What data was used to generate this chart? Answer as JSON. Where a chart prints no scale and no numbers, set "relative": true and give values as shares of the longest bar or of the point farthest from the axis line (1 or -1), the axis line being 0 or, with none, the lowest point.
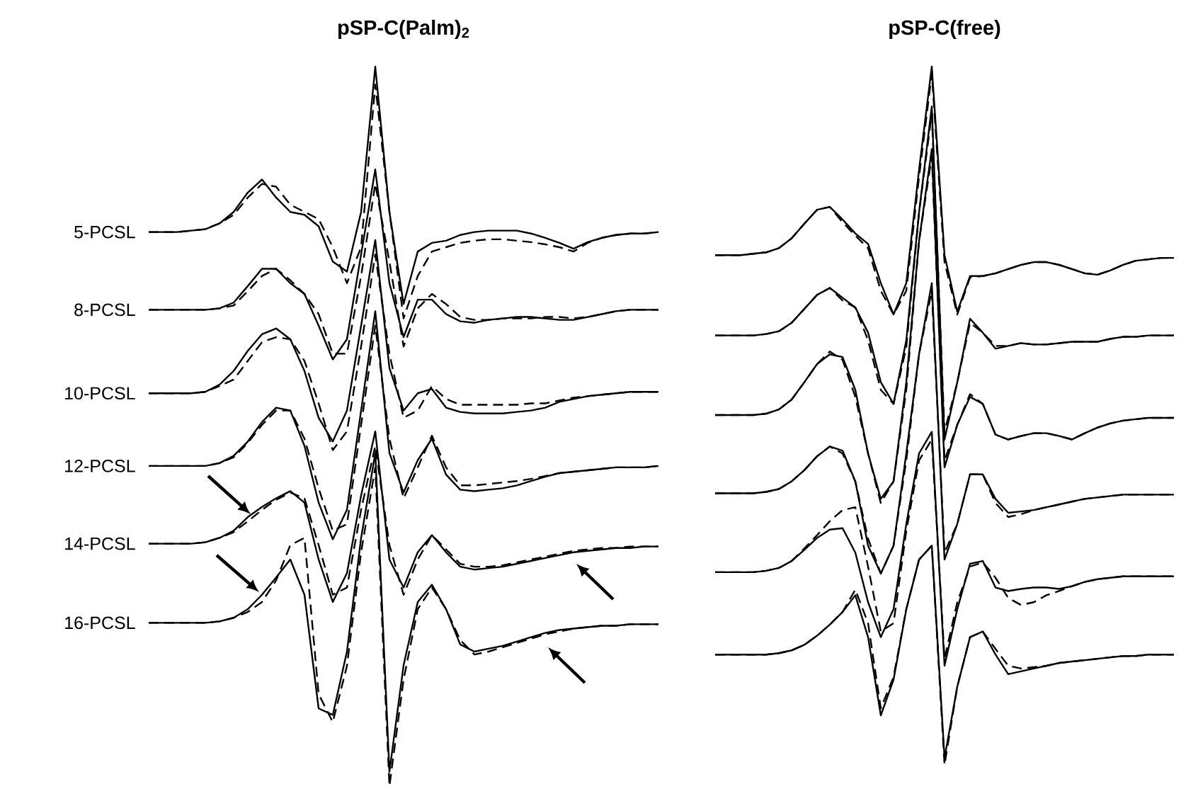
{
  "chart_data": [
    {
      "type": "line",
      "title": "pSP-C(Palm)$_{2}$",
      "relative": true,
      "categories": [
        null,
        null,
        null,
        null,
        null,
        null,
        null,
        null,
        null,
        null,
        null,
        null,
        null,
        null,
        null,
        null,
        null,
        null,
        null,
        null,
        null,
        null,
        null,
        null,
        null,
        null,
        null,
        null,
        null,
        null,
        null,
        null,
        null,
        null,
        null,
        null,
        null
      ],
      "series": [
        {
          "name": "5-PCSL",
          "color": "#000000",
          "line_style": "solid",
          "values": [
            0.77,
            0.77,
            0.77,
            0.772,
            0.774,
            0.782,
            0.798,
            0.825,
            0.843,
            0.818,
            0.798,
            0.794,
            0.778,
            0.729,
            0.715,
            0.798,
            1,
            0.798,
            0.67,
            0.743,
            0.755,
            0.758,
            0.766,
            0.77,
            0.772,
            0.772,
            0.772,
            0.768,
            0.762,
            0.755,
            0.747,
            0.756,
            0.762,
            0.766,
            0.768,
            0.768,
            0.77
          ]
        },
        {
          "color": "#000000",
          "line_style": "dashed",
          "values": [
            0.77,
            0.77,
            0.77,
            0.772,
            0.774,
            0.782,
            0.794,
            0.818,
            0.837,
            0.833,
            0.808,
            0.798,
            0.788,
            0.749,
            0.699,
            0.749,
            0.975,
            0.798,
            0.65,
            0.709,
            0.743,
            0.749,
            0.755,
            0.758,
            0.76,
            0.76,
            0.758,
            0.756,
            0.753,
            0.749,
            0.743,
            0.755,
            0.762,
            0.766,
            0.768,
            0.768,
            0.77
          ]
        },
        {
          "name": "8-PCSL",
          "color": "#000000",
          "line_style": "solid",
          "values": [
            0.662,
            0.662,
            0.662,
            0.662,
            0.662,
            0.664,
            0.672,
            0.695,
            0.719,
            0.719,
            0.699,
            0.684,
            0.64,
            0.593,
            0.621,
            0.739,
            0.857,
            0.699,
            0.624,
            0.676,
            0.676,
            0.656,
            0.646,
            0.644,
            0.648,
            0.65,
            0.652,
            0.652,
            0.65,
            0.648,
            0.648,
            0.652,
            0.656,
            0.66,
            0.662,
            0.662,
            0.662
          ]
        },
        {
          "color": "#000000",
          "line_style": "dashed",
          "values": [
            0.662,
            0.662,
            0.662,
            0.662,
            0.662,
            0.664,
            0.668,
            0.688,
            0.709,
            0.719,
            0.703,
            0.684,
            0.656,
            0.601,
            0.601,
            0.709,
            0.837,
            0.729,
            0.611,
            0.664,
            0.684,
            0.67,
            0.652,
            0.648,
            0.648,
            0.65,
            0.65,
            0.65,
            0.652,
            0.652,
            0.65,
            0.652,
            0.656,
            0.66,
            0.662,
            0.662,
            0.662
          ]
        },
        {
          "name": "10-PCSL",
          "color": "#000000",
          "line_style": "solid",
          "values": [
            0.546,
            0.546,
            0.546,
            0.546,
            0.548,
            0.558,
            0.577,
            0.605,
            0.628,
            0.636,
            0.621,
            0.577,
            0.512,
            0.479,
            0.522,
            0.64,
            0.759,
            0.581,
            0.522,
            0.546,
            0.552,
            0.526,
            0.52,
            0.518,
            0.518,
            0.518,
            0.52,
            0.522,
            0.526,
            0.534,
            0.538,
            0.542,
            0.544,
            0.546,
            0.548,
            0.548,
            0.548
          ]
        },
        {
          "color": "#000000",
          "line_style": "dashed",
          "values": [
            0.546,
            0.546,
            0.546,
            0.546,
            0.548,
            0.556,
            0.565,
            0.591,
            0.617,
            0.624,
            0.621,
            0.591,
            0.532,
            0.467,
            0.493,
            0.611,
            0.739,
            0.601,
            0.512,
            0.522,
            0.556,
            0.538,
            0.53,
            0.53,
            0.53,
            0.53,
            0.53,
            0.532,
            0.532,
            0.536,
            0.54,
            0.542,
            0.544,
            0.546,
            0.548,
            0.548,
            0.548
          ]
        },
        {
          "name": "12-PCSL",
          "color": "#000000",
          "line_style": "solid",
          "values": [
            0.445,
            0.445,
            0.445,
            0.445,
            0.445,
            0.449,
            0.459,
            0.479,
            0.506,
            0.526,
            0.522,
            0.473,
            0.394,
            0.343,
            0.384,
            0.522,
            0.66,
            0.463,
            0.408,
            0.453,
            0.483,
            0.433,
            0.412,
            0.41,
            0.412,
            0.414,
            0.418,
            0.424,
            0.43,
            0.435,
            0.437,
            0.439,
            0.441,
            0.443,
            0.443,
            0.443,
            0.445
          ]
        },
        {
          "color": "#000000",
          "line_style": "dashed",
          "values": [
            0.445,
            0.445,
            0.445,
            0.445,
            0.445,
            0.449,
            0.457,
            0.477,
            0.502,
            0.522,
            0.522,
            0.483,
            0.414,
            0.355,
            0.364,
            0.502,
            0.64,
            0.483,
            0.4,
            0.443,
            0.487,
            0.443,
            0.418,
            0.418,
            0.42,
            0.422,
            0.424,
            0.427,
            0.431,
            0.435,
            0.437,
            0.439,
            0.441,
            0.443,
            0.443,
            0.443,
            0.445
          ]
        },
        {
          "name": "14-PCSL",
          "color": "#000000",
          "line_style": "solid",
          "values": [
            0.337,
            0.337,
            0.337,
            0.337,
            0.339,
            0.345,
            0.355,
            0.374,
            0.388,
            0.4,
            0.41,
            0.394,
            0.315,
            0.256,
            0.296,
            0.404,
            0.493,
            0.315,
            0.276,
            0.325,
            0.349,
            0.325,
            0.305,
            0.301,
            0.303,
            0.305,
            0.309,
            0.313,
            0.317,
            0.321,
            0.325,
            0.327,
            0.329,
            0.331,
            0.331,
            0.333,
            0.333
          ]
        },
        {
          "color": "#000000",
          "line_style": "dashed",
          "values": [
            0.337,
            0.337,
            0.337,
            0.337,
            0.339,
            0.345,
            0.353,
            0.368,
            0.384,
            0.398,
            0.408,
            0.4,
            0.335,
            0.266,
            0.276,
            0.384,
            0.473,
            0.335,
            0.266,
            0.315,
            0.349,
            0.329,
            0.309,
            0.305,
            0.305,
            0.307,
            0.311,
            0.315,
            0.319,
            0.323,
            0.327,
            0.329,
            0.331,
            0.331,
            0.333,
            0.333,
            0.333
          ]
        },
        {
          "name": "16-PCSL",
          "color": "#000000",
          "line_style": "solid",
          "values": [
            0.227,
            0.227,
            0.227,
            0.227,
            0.227,
            0.229,
            0.234,
            0.246,
            0.266,
            0.29,
            0.315,
            0.266,
            0.108,
            0.099,
            0.187,
            0.345,
            0.463,
            0.02,
            0.168,
            0.256,
            0.28,
            0.246,
            0.197,
            0.187,
            0.191,
            0.195,
            0.201,
            0.207,
            0.213,
            0.217,
            0.219,
            0.221,
            0.223,
            0.223,
            0.225,
            0.225,
            0.225
          ]
        },
        {
          "color": "#000000",
          "line_style": "dashed",
          "values": [
            0.227,
            0.227,
            0.227,
            0.227,
            0.227,
            0.229,
            0.234,
            0.242,
            0.256,
            0.286,
            0.335,
            0.345,
            0.128,
            0.089,
            0.167,
            0.325,
            0.443,
            0,
            0.148,
            0.246,
            0.276,
            0.246,
            0.203,
            0.183,
            0.187,
            0.193,
            0.199,
            0.205,
            0.211,
            0.215,
            0.219,
            0.221,
            0.223,
            0.223,
            0.225,
            0.225,
            0.225
          ]
        }
      ]
    },
    {
      "type": "line",
      "title": "pSP-C(free)",
      "relative": true,
      "categories": [
        null,
        null,
        null,
        null,
        null,
        null,
        null,
        null,
        null,
        null,
        null,
        null,
        null,
        null,
        null,
        null,
        null,
        null,
        null,
        null,
        null,
        null,
        null,
        null,
        null,
        null,
        null,
        null,
        null,
        null,
        null,
        null,
        null,
        null,
        null,
        null,
        null
      ],
      "series": [
        {
          "color": "#000000",
          "line_style": "solid",
          "values": [
            0.73,
            0.73,
            0.73,
            0.732,
            0.734,
            0.74,
            0.754,
            0.775,
            0.795,
            0.799,
            0.781,
            0.761,
            0.746,
            0.69,
            0.645,
            0.69,
            0.852,
            1,
            0.73,
            0.649,
            0.7,
            0.7,
            0.704,
            0.71,
            0.716,
            0.72,
            0.72,
            0.716,
            0.71,
            0.704,
            0.702,
            0.708,
            0.716,
            0.722,
            0.724,
            0.726,
            0.726
          ]
        },
        {
          "color": "#000000",
          "line_style": "dashed",
          "values": [
            0.73,
            0.73,
            0.73,
            0.732,
            0.734,
            0.74,
            0.754,
            0.775,
            0.795,
            0.799,
            0.777,
            0.758,
            0.74,
            0.679,
            0.645,
            0.679,
            0.842,
            0.99,
            0.72,
            0.645,
            0.698,
            0.7,
            0.704,
            0.71,
            0.716,
            0.72,
            0.72,
            0.716,
            0.71,
            0.704,
            0.702,
            0.708,
            0.716,
            0.722,
            0.724,
            0.726,
            0.726
          ]
        },
        {
          "color": "#000000",
          "line_style": "solid",
          "values": [
            0.615,
            0.615,
            0.615,
            0.615,
            0.617,
            0.621,
            0.633,
            0.653,
            0.673,
            0.683,
            0.669,
            0.655,
            0.619,
            0.548,
            0.517,
            0.608,
            0.791,
            0.943,
            0.466,
            0.548,
            0.639,
            0.619,
            0.596,
            0.6,
            0.604,
            0.602,
            0.602,
            0.604,
            0.606,
            0.606,
            0.606,
            0.61,
            0.613,
            0.613,
            0.615,
            0.615,
            0.615
          ]
        },
        {
          "color": "#000000",
          "line_style": "dashed",
          "values": [
            0.615,
            0.615,
            0.615,
            0.615,
            0.617,
            0.621,
            0.633,
            0.653,
            0.673,
            0.683,
            0.665,
            0.655,
            0.608,
            0.537,
            0.517,
            0.598,
            0.791,
            0.933,
            0.477,
            0.548,
            0.633,
            0.619,
            0.6,
            0.6,
            0.604,
            0.602,
            0.602,
            0.604,
            0.606,
            0.606,
            0.606,
            0.61,
            0.613,
            0.613,
            0.615,
            0.615,
            0.615
          ]
        },
        {
          "color": "#000000",
          "line_style": "solid",
          "values": [
            0.501,
            0.501,
            0.501,
            0.501,
            0.503,
            0.509,
            0.523,
            0.548,
            0.574,
            0.588,
            0.584,
            0.537,
            0.446,
            0.381,
            0.406,
            0.548,
            0.75,
            0.882,
            0.426,
            0.487,
            0.527,
            0.517,
            0.473,
            0.466,
            0.471,
            0.475,
            0.475,
            0.471,
            0.466,
            0.475,
            0.483,
            0.489,
            0.493,
            0.495,
            0.497,
            0.497,
            0.497
          ]
        },
        {
          "color": "#000000",
          "line_style": "dashed",
          "values": [
            0.501,
            0.501,
            0.501,
            0.501,
            0.503,
            0.509,
            0.523,
            0.548,
            0.574,
            0.592,
            0.58,
            0.527,
            0.446,
            0.375,
            0.406,
            0.537,
            0.75,
            0.872,
            0.436,
            0.487,
            0.531,
            0.517,
            0.473,
            0.466,
            0.471,
            0.475,
            0.475,
            0.471,
            0.466,
            0.475,
            0.483,
            0.489,
            0.493,
            0.495,
            0.497,
            0.497,
            0.497
          ]
        },
        {
          "color": "#000000",
          "line_style": "solid",
          "values": [
            0.389,
            0.389,
            0.389,
            0.389,
            0.391,
            0.395,
            0.406,
            0.422,
            0.442,
            0.456,
            0.45,
            0.406,
            0.314,
            0.274,
            0.314,
            0.446,
            0.588,
            0.69,
            0.294,
            0.345,
            0.416,
            0.416,
            0.381,
            0.361,
            0.363,
            0.365,
            0.369,
            0.373,
            0.377,
            0.381,
            0.383,
            0.385,
            0.387,
            0.387,
            0.387,
            0.387,
            0.387
          ]
        },
        {
          "color": "#000000",
          "line_style": "dashed",
          "values": [
            0.389,
            0.389,
            0.389,
            0.389,
            0.391,
            0.395,
            0.406,
            0.422,
            0.442,
            0.456,
            0.446,
            0.406,
            0.324,
            0.274,
            0.314,
            0.436,
            0.588,
            0.679,
            0.304,
            0.345,
            0.416,
            0.416,
            0.375,
            0.355,
            0.359,
            0.365,
            0.369,
            0.373,
            0.377,
            0.381,
            0.383,
            0.385,
            0.387,
            0.387,
            0.387,
            0.387,
            0.387
          ]
        },
        {
          "color": "#000000",
          "line_style": "solid",
          "values": [
            0.276,
            0.276,
            0.276,
            0.276,
            0.278,
            0.282,
            0.292,
            0.308,
            0.325,
            0.337,
            0.339,
            0.304,
            0.233,
            0.183,
            0.223,
            0.345,
            0.446,
            0.477,
            0.142,
            0.223,
            0.288,
            0.292,
            0.254,
            0.249,
            0.252,
            0.254,
            0.254,
            0.252,
            0.256,
            0.262,
            0.266,
            0.268,
            0.27,
            0.27,
            0.27,
            0.27,
            0.27
          ]
        },
        {
          "color": "#000000",
          "line_style": "dashed",
          "values": [
            0.276,
            0.276,
            0.276,
            0.276,
            0.278,
            0.282,
            0.292,
            0.31,
            0.329,
            0.349,
            0.365,
            0.369,
            0.284,
            0.191,
            0.203,
            0.335,
            0.436,
            0.466,
            0.152,
            0.233,
            0.284,
            0.29,
            0.268,
            0.239,
            0.229,
            0.233,
            0.243,
            0.249,
            0.256,
            0.262,
            0.266,
            0.268,
            0.27,
            0.27,
            0.27,
            0.27,
            0.27
          ]
        },
        {
          "color": "#000000",
          "line_style": "solid",
          "values": [
            0.158,
            0.158,
            0.158,
            0.158,
            0.158,
            0.16,
            0.164,
            0.172,
            0.185,
            0.201,
            0.219,
            0.243,
            0.183,
            0.071,
            0.122,
            0.223,
            0.294,
            0.314,
            0.01,
            0.112,
            0.183,
            0.191,
            0.158,
            0.13,
            0.134,
            0.138,
            0.142,
            0.146,
            0.148,
            0.15,
            0.152,
            0.154,
            0.156,
            0.156,
            0.158,
            0.158,
            0.158
          ]
        },
        {
          "color": "#000000",
          "line_style": "dashed",
          "values": [
            0.158,
            0.158,
            0.158,
            0.158,
            0.158,
            0.16,
            0.164,
            0.172,
            0.185,
            0.201,
            0.219,
            0.251,
            0.203,
            0.081,
            0.126,
            0.223,
            0.294,
            0.314,
            0,
            0.112,
            0.183,
            0.191,
            0.166,
            0.142,
            0.138,
            0.14,
            0.142,
            0.146,
            0.148,
            0.15,
            0.152,
            0.154,
            0.156,
            0.156,
            0.158,
            0.158,
            0.158
          ]
        }
      ]
    }
  ]
}
